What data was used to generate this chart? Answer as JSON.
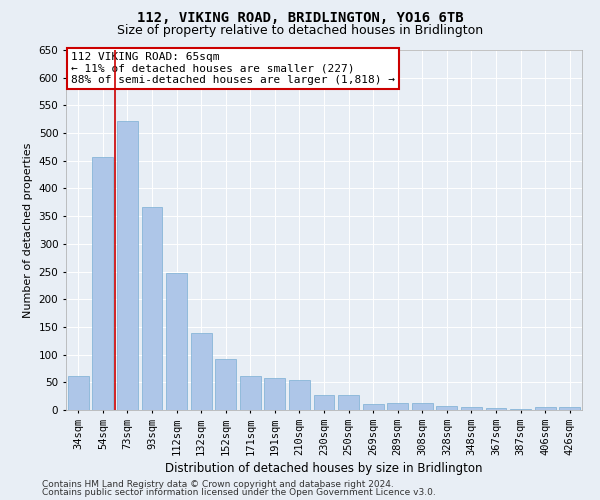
{
  "title": "112, VIKING ROAD, BRIDLINGTON, YO16 6TB",
  "subtitle": "Size of property relative to detached houses in Bridlington",
  "xlabel": "Distribution of detached houses by size in Bridlington",
  "ylabel": "Number of detached properties",
  "categories": [
    "34sqm",
    "54sqm",
    "73sqm",
    "93sqm",
    "112sqm",
    "132sqm",
    "152sqm",
    "171sqm",
    "191sqm",
    "210sqm",
    "230sqm",
    "250sqm",
    "269sqm",
    "289sqm",
    "308sqm",
    "328sqm",
    "348sqm",
    "367sqm",
    "387sqm",
    "406sqm",
    "426sqm"
  ],
  "values": [
    62,
    457,
    522,
    367,
    248,
    139,
    92,
    61,
    57,
    54,
    27,
    27,
    10,
    12,
    12,
    7,
    6,
    4,
    2,
    6,
    5
  ],
  "bar_color": "#aec6e8",
  "bar_edge_color": "#7aafd4",
  "vline_color": "#cc0000",
  "vline_x": 1.5,
  "annotation_text": "112 VIKING ROAD: 65sqm\n← 11% of detached houses are smaller (227)\n88% of semi-detached houses are larger (1,818) →",
  "annotation_box_color": "#ffffff",
  "annotation_box_edge": "#cc0000",
  "ylim": [
    0,
    650
  ],
  "yticks": [
    0,
    50,
    100,
    150,
    200,
    250,
    300,
    350,
    400,
    450,
    500,
    550,
    600,
    650
  ],
  "bg_color": "#e8eef5",
  "plot_bg": "#e8eef5",
  "footer_line1": "Contains HM Land Registry data © Crown copyright and database right 2024.",
  "footer_line2": "Contains public sector information licensed under the Open Government Licence v3.0.",
  "title_fontsize": 10,
  "subtitle_fontsize": 9,
  "xlabel_fontsize": 8.5,
  "ylabel_fontsize": 8,
  "annot_fontsize": 8,
  "tick_fontsize": 7.5,
  "footer_fontsize": 6.5
}
